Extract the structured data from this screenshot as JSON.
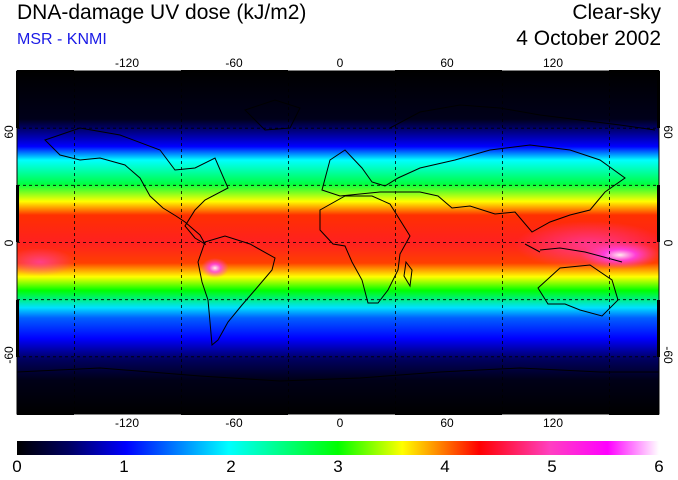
{
  "header": {
    "title": "DNA-damage UV dose (kJ/m2)",
    "subtitle": "MSR - KNMI",
    "sky_condition": "Clear-sky",
    "date": "4 October 2002"
  },
  "map": {
    "projection": "equirectangular",
    "lon_range": [
      -180,
      180
    ],
    "lat_range": [
      -90,
      90
    ],
    "lon_ticks": [
      "-120",
      "-60",
      "0",
      "60",
      "120"
    ],
    "lat_ticks": [
      "60",
      "0",
      "-60"
    ],
    "gridline_style": "dashed",
    "gridline_color": "#000000",
    "coastline_color": "#000000"
  },
  "colorbar": {
    "labels": [
      "0",
      "1",
      "2",
      "3",
      "4",
      "5",
      "6"
    ],
    "stops": [
      "#000000",
      "#000060",
      "#0000ff",
      "#00ffff",
      "#00ff00",
      "#ffff00",
      "#ff8000",
      "#ff0000",
      "#ff40c0",
      "#ff00ff",
      "#ffffff"
    ]
  }
}
